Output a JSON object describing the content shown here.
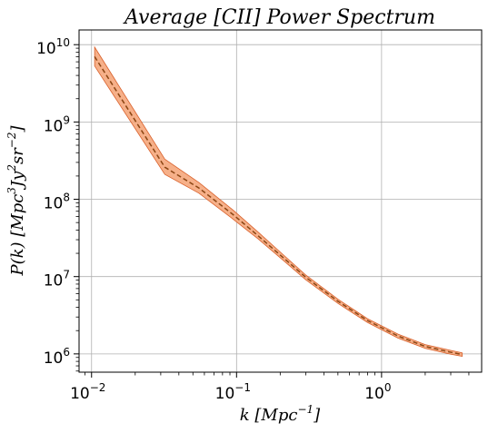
{
  "chart_data": {
    "type": "area",
    "title": "Average [CII] Power Spectrum",
    "xlabel": {
      "base": "k [Mpc",
      "sup": "−1",
      "tail": "]"
    },
    "ylabel": {
      "p1": "P(k) [Mpc",
      "s1": "3",
      "p2": "Jy",
      "s2": "2",
      "p3": "sr",
      "s3": "−2",
      "p4": "]"
    },
    "xscale": "log",
    "yscale": "log",
    "xlim": [
      0.0082,
      4.9
    ],
    "ylim": [
      580000,
      15500000000
    ],
    "grid": true,
    "x_ticks": [
      {
        "value": 0.01,
        "base": "10",
        "exp": "−2"
      },
      {
        "value": 0.1,
        "base": "10",
        "exp": "−1"
      },
      {
        "value": 1,
        "base": "10",
        "exp": "0"
      }
    ],
    "y_ticks": [
      {
        "value": 1000000,
        "base": "10",
        "exp": "6"
      },
      {
        "value": 10000000,
        "base": "10",
        "exp": "7"
      },
      {
        "value": 100000000,
        "base": "10",
        "exp": "8"
      },
      {
        "value": 1000000000,
        "base": "10",
        "exp": "9"
      },
      {
        "value": 10000000000,
        "base": "10",
        "exp": "10"
      }
    ],
    "series": [
      {
        "x": [
          0.0105,
          0.032,
          0.055,
          0.095,
          0.14,
          0.2,
          0.3,
          0.5,
          0.8,
          1.3,
          2.0,
          3.0,
          3.6
        ],
        "y": [
          7000000000,
          260000000,
          140000000,
          63000000,
          34000000,
          19000000,
          9800000,
          4800000,
          2700000,
          1700000,
          1250000,
          1050000,
          980000
        ],
        "y_lower": [
          5300000000,
          210000000,
          120000000,
          55000000,
          31000000,
          17500000,
          9100000,
          4500000,
          2550000,
          1600000,
          1180000,
          990000,
          930000
        ],
        "y_upper": [
          9300000000,
          330000000,
          165000000,
          72000000,
          38000000,
          20800000,
          10500000,
          5100000,
          2850000,
          1800000,
          1320000,
          1110000,
          1030000
        ]
      }
    ],
    "colors": {
      "band": "#f4a274",
      "band_edge": "#d9602b",
      "line": "#8b4513"
    }
  }
}
